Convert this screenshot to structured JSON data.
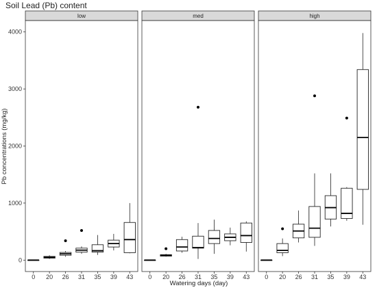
{
  "chart_data": {
    "type": "boxplot",
    "title": "Soil Lead (Pb) content",
    "xlabel": "Watering days (day)",
    "ylabel": "Pb concentrations (mg/kg)",
    "ylim": [
      -200,
      4200
    ],
    "yticks": [
      0,
      1000,
      2000,
      3000,
      4000
    ],
    "categories": [
      "0",
      "20",
      "26",
      "31",
      "35",
      "39",
      "43"
    ],
    "facets": [
      {
        "label": "low",
        "boxes": [
          {
            "min": 0,
            "q1": 0,
            "median": 0,
            "q3": 0,
            "max": 0,
            "outliers": []
          },
          {
            "min": 20,
            "q1": 35,
            "median": 50,
            "q3": 65,
            "max": 85,
            "outliers": []
          },
          {
            "min": 60,
            "q1": 85,
            "median": 110,
            "q3": 135,
            "max": 160,
            "outliers": [
              340
            ]
          },
          {
            "min": 110,
            "q1": 140,
            "median": 175,
            "q3": 210,
            "max": 240,
            "outliers": [
              520
            ]
          },
          {
            "min": 90,
            "q1": 140,
            "median": 165,
            "q3": 270,
            "max": 440,
            "outliers": []
          },
          {
            "min": 170,
            "q1": 230,
            "median": 290,
            "q3": 350,
            "max": 460,
            "outliers": []
          },
          {
            "min": 120,
            "q1": 130,
            "median": 360,
            "q3": 660,
            "max": 1000,
            "outliers": []
          }
        ]
      },
      {
        "label": "med",
        "boxes": [
          {
            "min": 0,
            "q1": 0,
            "median": 0,
            "q3": 0,
            "max": 0,
            "outliers": []
          },
          {
            "min": 60,
            "q1": 70,
            "median": 85,
            "q3": 95,
            "max": 110,
            "outliers": [
              200
            ]
          },
          {
            "min": 130,
            "q1": 160,
            "median": 230,
            "q3": 360,
            "max": 410,
            "outliers": []
          },
          {
            "min": 20,
            "q1": 210,
            "median": 220,
            "q3": 420,
            "max": 650,
            "outliers": [
              2680
            ]
          },
          {
            "min": 110,
            "q1": 290,
            "median": 380,
            "q3": 520,
            "max": 710,
            "outliers": []
          },
          {
            "min": 260,
            "q1": 340,
            "median": 400,
            "q3": 460,
            "max": 570,
            "outliers": []
          },
          {
            "min": 150,
            "q1": 310,
            "median": 430,
            "q3": 650,
            "max": 680,
            "outliers": []
          }
        ]
      },
      {
        "label": "high",
        "boxes": [
          {
            "min": 0,
            "q1": 0,
            "median": 0,
            "q3": 0,
            "max": 0,
            "outliers": []
          },
          {
            "min": 70,
            "q1": 130,
            "median": 170,
            "q3": 290,
            "max": 380,
            "outliers": [
              550
            ]
          },
          {
            "min": 310,
            "q1": 390,
            "median": 510,
            "q3": 630,
            "max": 870,
            "outliers": []
          },
          {
            "min": 250,
            "q1": 400,
            "median": 560,
            "q3": 940,
            "max": 1520,
            "outliers": [
              2880
            ]
          },
          {
            "min": 590,
            "q1": 720,
            "median": 920,
            "q3": 1130,
            "max": 1520,
            "outliers": []
          },
          {
            "min": 690,
            "q1": 730,
            "median": 820,
            "q3": 1260,
            "max": 1280,
            "outliers": [
              2490
            ]
          },
          {
            "min": 620,
            "q1": 1240,
            "median": 2150,
            "q3": 3340,
            "max": 3980,
            "outliers": []
          }
        ]
      }
    ],
    "grid": false,
    "legend": "none"
  }
}
